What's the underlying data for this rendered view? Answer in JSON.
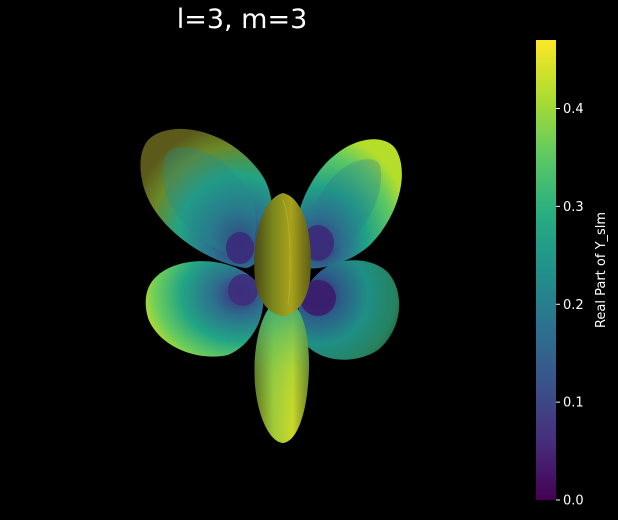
{
  "chart_data": {
    "type": "surface3d",
    "title": "l=3, m=3",
    "function": "Real part of spherical harmonic Y_l^m",
    "l": 3,
    "m": 3,
    "background": "#000000",
    "colormap": "viridis",
    "colorbar": {
      "label": "Real Part of Y_slm",
      "range": [
        0.0,
        0.47
      ],
      "ticks": [
        0.0,
        0.1,
        0.2,
        0.3,
        0.4
      ],
      "tick_labels": [
        "0.0",
        "0.1",
        "0.2",
        "0.3",
        "0.4"
      ]
    },
    "axes_visible": false,
    "grid": false
  }
}
